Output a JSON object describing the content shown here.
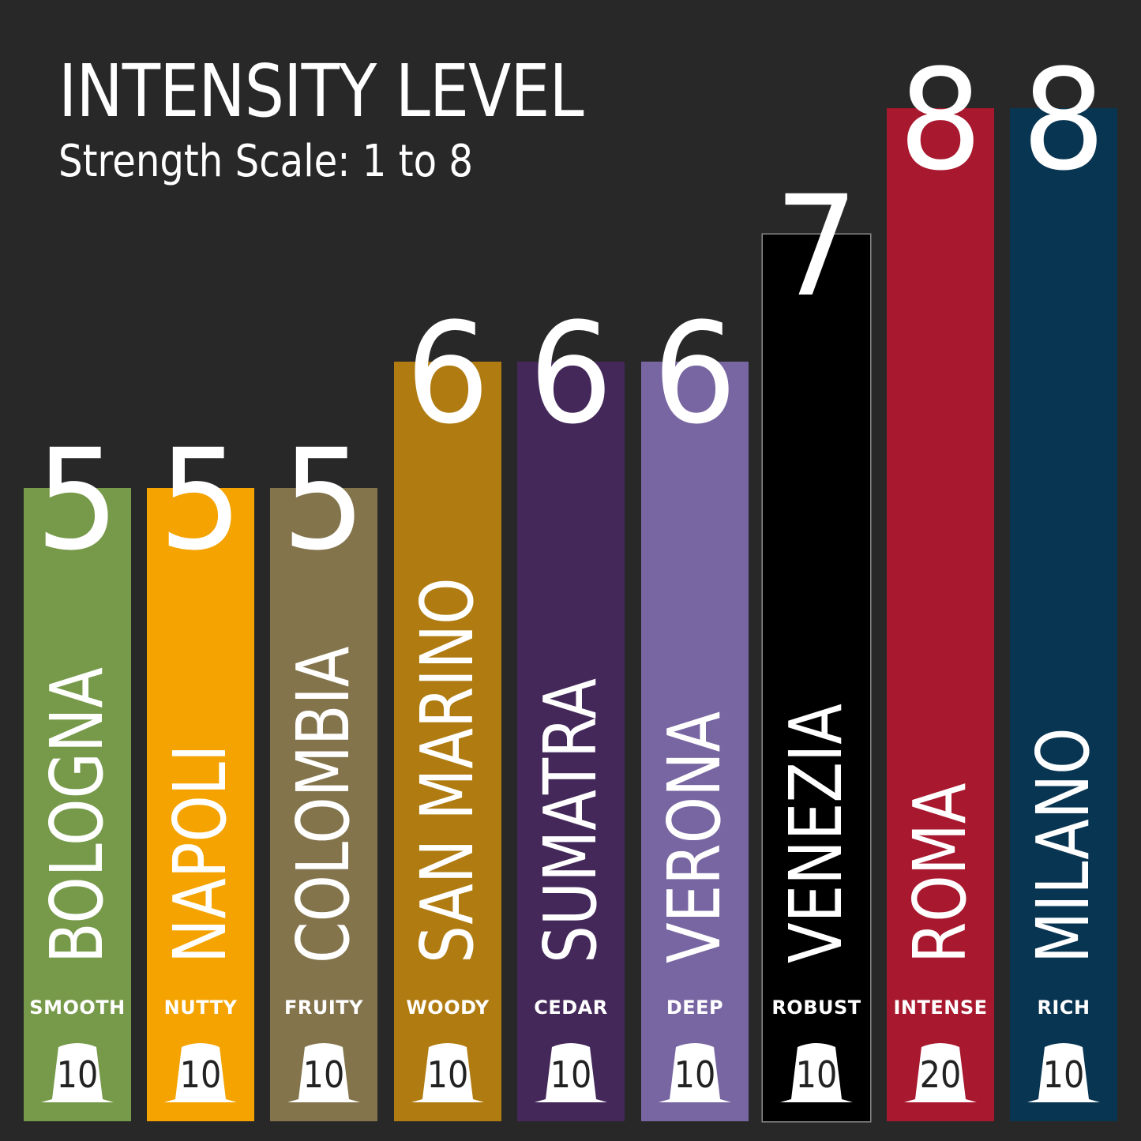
{
  "chart_data": {
    "type": "bar",
    "title": "INTENSITY LEVEL",
    "subtitle": "Strength Scale: 1 to 8",
    "ylim": [
      0,
      8
    ],
    "grid": false,
    "bars": [
      {
        "name": "BOLOGNA",
        "value": 5,
        "flavor": "SMOOTH",
        "count": "10",
        "color": "#779a4a"
      },
      {
        "name": "NAPOLI",
        "value": 5,
        "flavor": "NUTTY",
        "count": "10",
        "color": "#f4a300"
      },
      {
        "name": "COLOMBIA",
        "value": 5,
        "flavor": "FRUITY",
        "count": "10",
        "color": "#83744c"
      },
      {
        "name": "SAN MARINO",
        "value": 6,
        "flavor": "WOODY",
        "count": "10",
        "color": "#b07c11"
      },
      {
        "name": "SUMATRA",
        "value": 6,
        "flavor": "CEDAR",
        "count": "10",
        "color": "#44285a"
      },
      {
        "name": "VERONA",
        "value": 6,
        "flavor": "DEEP",
        "count": "10",
        "color": "#7866a2"
      },
      {
        "name": "VENEZIA",
        "value": 7,
        "flavor": "ROBUST",
        "count": "10",
        "color": "#000000"
      },
      {
        "name": "ROMA",
        "value": 8,
        "flavor": "INTENSE",
        "count": "20",
        "color": "#a8182e"
      },
      {
        "name": "MILANO",
        "value": 8,
        "flavor": "RICH",
        "count": "10",
        "color": "#083552"
      }
    ]
  },
  "icons": {
    "capsule": "coffee-capsule-icon"
  }
}
